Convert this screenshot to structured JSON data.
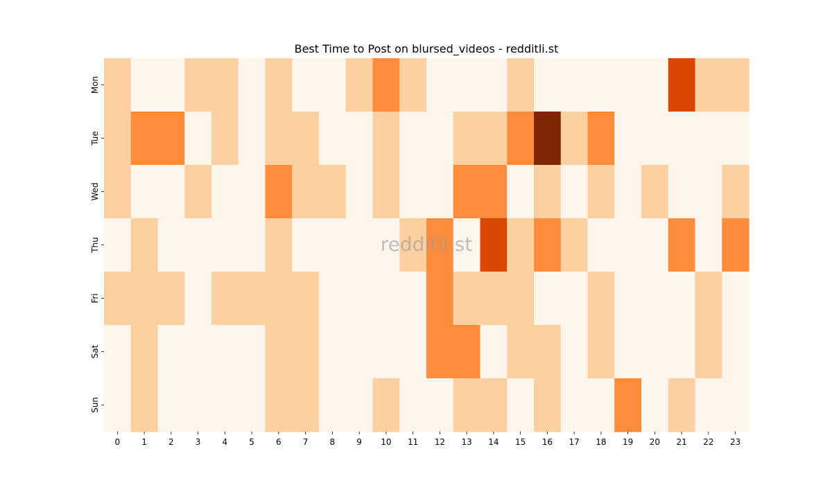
{
  "chart_data": {
    "type": "heatmap",
    "title": "Best Time to Post on blursed_videos - redditli.st",
    "xlabel": "",
    "ylabel": "",
    "x_categories": [
      "0",
      "1",
      "2",
      "3",
      "4",
      "5",
      "6",
      "7",
      "8",
      "9",
      "10",
      "11",
      "12",
      "13",
      "14",
      "15",
      "16",
      "17",
      "18",
      "19",
      "20",
      "21",
      "22",
      "23"
    ],
    "y_categories": [
      "Mon",
      "Tue",
      "Wed",
      "Thu",
      "Fri",
      "Sat",
      "Sun"
    ],
    "values": [
      [
        1,
        0,
        0,
        1,
        1,
        0,
        1,
        0,
        0,
        1,
        2,
        1,
        0,
        0,
        0,
        1,
        0,
        0,
        0,
        0,
        0,
        3,
        1,
        1
      ],
      [
        1,
        2,
        2,
        0,
        1,
        0,
        1,
        1,
        0,
        0,
        1,
        0,
        0,
        1,
        1,
        2,
        4,
        1,
        2,
        0,
        0,
        0,
        0,
        0
      ],
      [
        1,
        0,
        0,
        1,
        0,
        0,
        2,
        1,
        1,
        0,
        1,
        0,
        0,
        2,
        2,
        0,
        1,
        0,
        1,
        0,
        1,
        0,
        0,
        1
      ],
      [
        0,
        1,
        0,
        0,
        0,
        0,
        1,
        0,
        0,
        0,
        0,
        1,
        2,
        0,
        3,
        1,
        2,
        1,
        0,
        0,
        0,
        2,
        0,
        2
      ],
      [
        1,
        1,
        1,
        0,
        1,
        1,
        1,
        1,
        0,
        0,
        0,
        0,
        2,
        1,
        1,
        1,
        0,
        0,
        1,
        0,
        0,
        0,
        1,
        0
      ],
      [
        0,
        1,
        0,
        0,
        0,
        0,
        1,
        1,
        0,
        0,
        0,
        0,
        2,
        2,
        0,
        1,
        1,
        0,
        1,
        0,
        0,
        0,
        1,
        0
      ],
      [
        0,
        1,
        0,
        0,
        0,
        0,
        1,
        1,
        0,
        0,
        1,
        0,
        0,
        1,
        1,
        0,
        1,
        0,
        0,
        2,
        0,
        1,
        0,
        0
      ]
    ],
    "color_scale": [
      "#fff5eb",
      "#fdd0a2",
      "#fd8d3c",
      "#d94801",
      "#7f2704"
    ],
    "colorbar": false
  },
  "watermark": "redditli.st"
}
